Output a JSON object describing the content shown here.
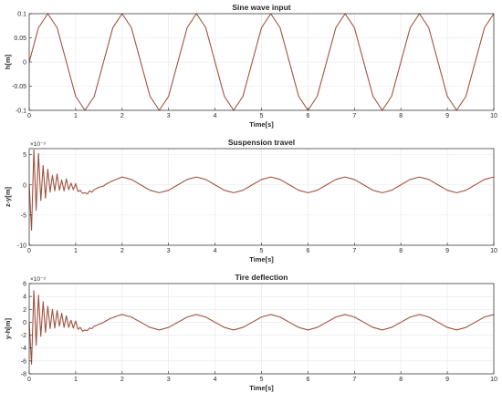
{
  "chart_data": [
    {
      "type": "line",
      "title": "Sine wave input",
      "xlabel": "Time[s]",
      "ylabel": "h[m]",
      "xlim": [
        0,
        10
      ],
      "ylim": [
        -0.1,
        0.1
      ],
      "xticks": [
        0,
        1,
        2,
        3,
        4,
        5,
        6,
        7,
        8,
        9,
        10
      ],
      "yticks": [
        -0.1,
        -0.05,
        0,
        0.05,
        0.1
      ],
      "yticklabels": [
        "-0.1",
        "-0.05",
        "0",
        "0.05",
        "0.1"
      ],
      "y_exponent_label": "",
      "grid": true,
      "line_color": "#a0523f",
      "x": [
        0,
        0.2,
        0.4,
        0.6,
        0.8,
        1.0,
        1.2,
        1.4,
        1.6,
        1.8,
        2.0,
        2.2,
        2.4,
        2.6,
        2.8,
        3.0,
        3.2,
        3.4,
        3.6,
        3.8,
        4.0,
        4.2,
        4.4,
        4.6,
        4.8,
        5.0,
        5.2,
        5.4,
        5.6,
        5.8,
        6.0,
        6.2,
        6.4,
        6.6,
        6.8,
        7.0,
        7.2,
        7.4,
        7.6,
        7.8,
        8.0,
        8.2,
        8.4,
        8.6,
        8.8,
        9.0,
        9.2,
        9.4,
        9.6,
        9.8,
        10.0
      ],
      "y": [
        0,
        0.071,
        0.1,
        0.071,
        0,
        -0.071,
        -0.1,
        -0.071,
        0,
        0.071,
        0.1,
        0.071,
        0,
        -0.071,
        -0.1,
        -0.071,
        0,
        0.071,
        0.1,
        0.071,
        0,
        -0.071,
        -0.1,
        -0.071,
        0,
        0.071,
        0.1,
        0.071,
        0,
        -0.071,
        -0.1,
        -0.071,
        0,
        0.071,
        0.1,
        0.071,
        0,
        -0.071,
        -0.1,
        -0.071,
        0,
        0.071,
        0.1,
        0.071,
        0,
        -0.071,
        -0.1,
        -0.071,
        0,
        0.071,
        0.1
      ]
    },
    {
      "type": "line",
      "title": "Suspension travel",
      "xlabel": "Time[s]",
      "ylabel": "z-y[m]",
      "xlim": [
        0,
        10
      ],
      "ylim": [
        -10,
        6
      ],
      "xticks": [
        0,
        1,
        2,
        3,
        4,
        5,
        6,
        7,
        8,
        9,
        10
      ],
      "yticks": [
        -10,
        -5,
        0,
        5
      ],
      "yticklabels": [
        "-10",
        "-5",
        "0",
        "5"
      ],
      "y_exponent_label": "×10⁻³",
      "grid": true,
      "line_color": "#a0523f",
      "x": [
        0,
        0.05,
        0.1,
        0.15,
        0.2,
        0.25,
        0.3,
        0.35,
        0.4,
        0.45,
        0.5,
        0.55,
        0.6,
        0.65,
        0.7,
        0.75,
        0.8,
        0.85,
        0.9,
        0.95,
        1.0,
        1.05,
        1.1,
        1.15,
        1.2,
        1.25,
        1.3,
        1.35,
        1.4,
        1.45,
        1.5,
        1.55,
        1.6,
        1.65,
        1.7,
        1.75,
        1.8,
        1.9,
        2.0,
        2.2,
        2.4,
        2.6,
        2.8,
        3.0,
        3.2,
        3.4,
        3.6,
        3.8,
        4.0,
        4.2,
        4.4,
        4.6,
        4.8,
        5.0,
        5.2,
        5.4,
        5.6,
        5.8,
        6.0,
        6.2,
        6.4,
        6.6,
        6.8,
        7.0,
        7.2,
        7.4,
        7.6,
        7.8,
        8.0,
        8.2,
        8.4,
        8.6,
        8.8,
        9.0,
        9.2,
        9.4,
        9.6,
        9.8,
        10.0
      ],
      "y": [
        0,
        -7.5,
        5.8,
        -4.2,
        5.2,
        -2.6,
        3.2,
        -2.2,
        2.6,
        -1.2,
        1.6,
        -1.0,
        1.8,
        -0.9,
        0.8,
        -1.0,
        1.0,
        -0.8,
        0.3,
        -0.8,
        0.2,
        -1.1,
        -0.9,
        -1.4,
        -1.3,
        -1.5,
        -1.0,
        -1.2,
        -0.8,
        -0.6,
        -0.4,
        -0.3,
        -0.2,
        0.1,
        0.3,
        0.5,
        0.7,
        1.0,
        1.3,
        0.9,
        0,
        -0.9,
        -1.3,
        -0.9,
        0,
        0.9,
        1.3,
        0.9,
        0,
        -0.9,
        -1.3,
        -0.9,
        0,
        0.9,
        1.3,
        0.9,
        0,
        -0.9,
        -1.3,
        -0.9,
        0,
        0.9,
        1.3,
        0.9,
        0,
        -0.9,
        -1.3,
        -0.9,
        0,
        0.9,
        1.3,
        0.9,
        0,
        -0.9,
        -1.3,
        -0.9,
        0,
        0.9,
        1.3
      ]
    },
    {
      "type": "line",
      "title": "Tire deflection",
      "xlabel": "Time[s]",
      "ylabel": "y-h[m]",
      "xlim": [
        0,
        10
      ],
      "ylim": [
        -8,
        6
      ],
      "xticks": [
        0,
        1,
        2,
        3,
        4,
        5,
        6,
        7,
        8,
        9,
        10
      ],
      "yticks": [
        -8,
        -6,
        -4,
        -2,
        0,
        2,
        4,
        6
      ],
      "yticklabels": [
        "-8",
        "-6",
        "-4",
        "-2",
        "0",
        "2",
        "4",
        "6"
      ],
      "y_exponent_label": "×10⁻³",
      "grid": true,
      "line_color": "#a0523f",
      "x": [
        0,
        0.05,
        0.1,
        0.15,
        0.2,
        0.25,
        0.3,
        0.35,
        0.4,
        0.45,
        0.5,
        0.55,
        0.6,
        0.65,
        0.7,
        0.75,
        0.8,
        0.85,
        0.9,
        0.95,
        1.0,
        1.05,
        1.1,
        1.15,
        1.2,
        1.25,
        1.3,
        1.35,
        1.4,
        1.45,
        1.5,
        1.55,
        1.6,
        1.65,
        1.7,
        1.75,
        1.8,
        1.9,
        2.0,
        2.2,
        2.4,
        2.6,
        2.8,
        3.0,
        3.2,
        3.4,
        3.6,
        3.8,
        4.0,
        4.2,
        4.4,
        4.6,
        4.8,
        5.0,
        5.2,
        5.4,
        5.6,
        5.8,
        6.0,
        6.2,
        6.4,
        6.6,
        6.8,
        7.0,
        7.2,
        7.4,
        7.6,
        7.8,
        8.0,
        8.2,
        8.4,
        8.6,
        8.8,
        9.0,
        9.2,
        9.4,
        9.6,
        9.8,
        10.0
      ],
      "y": [
        0,
        -6.5,
        4.9,
        -3.6,
        4.2,
        -2.2,
        3.2,
        -1.6,
        2.5,
        -1.0,
        2.0,
        -0.9,
        1.8,
        -0.6,
        1.4,
        -0.8,
        1.0,
        -0.8,
        0.3,
        -0.9,
        0.2,
        -1.1,
        -0.8,
        -1.4,
        -1.2,
        -1.3,
        -0.9,
        -1.0,
        -0.6,
        -0.5,
        -0.3,
        -0.2,
        0,
        0.2,
        0.4,
        0.6,
        0.7,
        1.0,
        1.2,
        0.8,
        0,
        -0.8,
        -1.2,
        -0.8,
        0,
        0.8,
        1.2,
        0.8,
        0,
        -0.8,
        -1.2,
        -0.8,
        0,
        0.8,
        1.2,
        0.8,
        0,
        -0.8,
        -1.2,
        -0.8,
        0,
        0.8,
        1.2,
        0.8,
        0,
        -0.8,
        -1.2,
        -0.8,
        0,
        0.8,
        1.2,
        0.8,
        0,
        -0.8,
        -1.2,
        -0.8,
        0,
        0.8,
        1.2
      ]
    }
  ]
}
